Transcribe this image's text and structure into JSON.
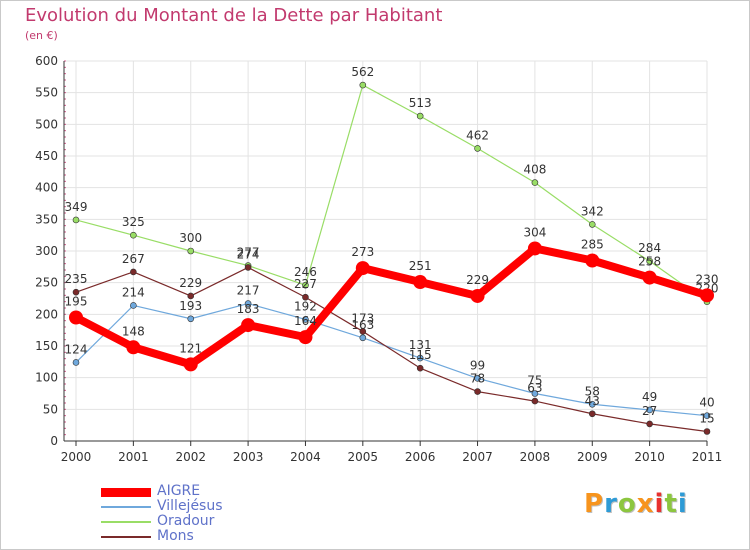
{
  "title": "Evolution du Montant de la Dette par Habitant",
  "subtitle": "(en €)",
  "logo": {
    "text": "Proxiti",
    "colors": [
      "#f7941d",
      "#2e9bd6",
      "#8cc63f",
      "#f7941d",
      "#e8312f",
      "#8cc63f",
      "#2e9bd6"
    ]
  },
  "chart_data": {
    "type": "line",
    "title": "Evolution du Montant de la Dette par Habitant",
    "ylabel": "(en €)",
    "xlabel": "",
    "x": [
      "2000",
      "2001",
      "2002",
      "2003",
      "2004",
      "2005",
      "2006",
      "2007",
      "2008",
      "2009",
      "2010",
      "2011"
    ],
    "ylim": [
      0,
      600
    ],
    "yticks": [
      0,
      50,
      100,
      150,
      200,
      250,
      300,
      350,
      400,
      450,
      500,
      550,
      600
    ],
    "grid": true,
    "legend": "bottom-left",
    "series": [
      {
        "name": "AIGRE",
        "color": "#ff0000",
        "emphasis": true,
        "values": [
          195,
          148,
          121,
          183,
          164,
          273,
          251,
          229,
          304,
          285,
          258,
          230
        ]
      },
      {
        "name": "Villejésus",
        "color": "#6fa8dc",
        "values": [
          124,
          214,
          193,
          217,
          192,
          163,
          131,
          99,
          75,
          58,
          49,
          40
        ]
      },
      {
        "name": "Oradour",
        "color": "#99dd66",
        "values": [
          349,
          325,
          300,
          277,
          246,
          562,
          513,
          462,
          408,
          342,
          284,
          220
        ]
      },
      {
        "name": "Mons",
        "color": "#7a2a2a",
        "values": [
          235,
          267,
          229,
          274,
          227,
          173,
          115,
          78,
          63,
          43,
          27,
          15
        ]
      }
    ]
  }
}
